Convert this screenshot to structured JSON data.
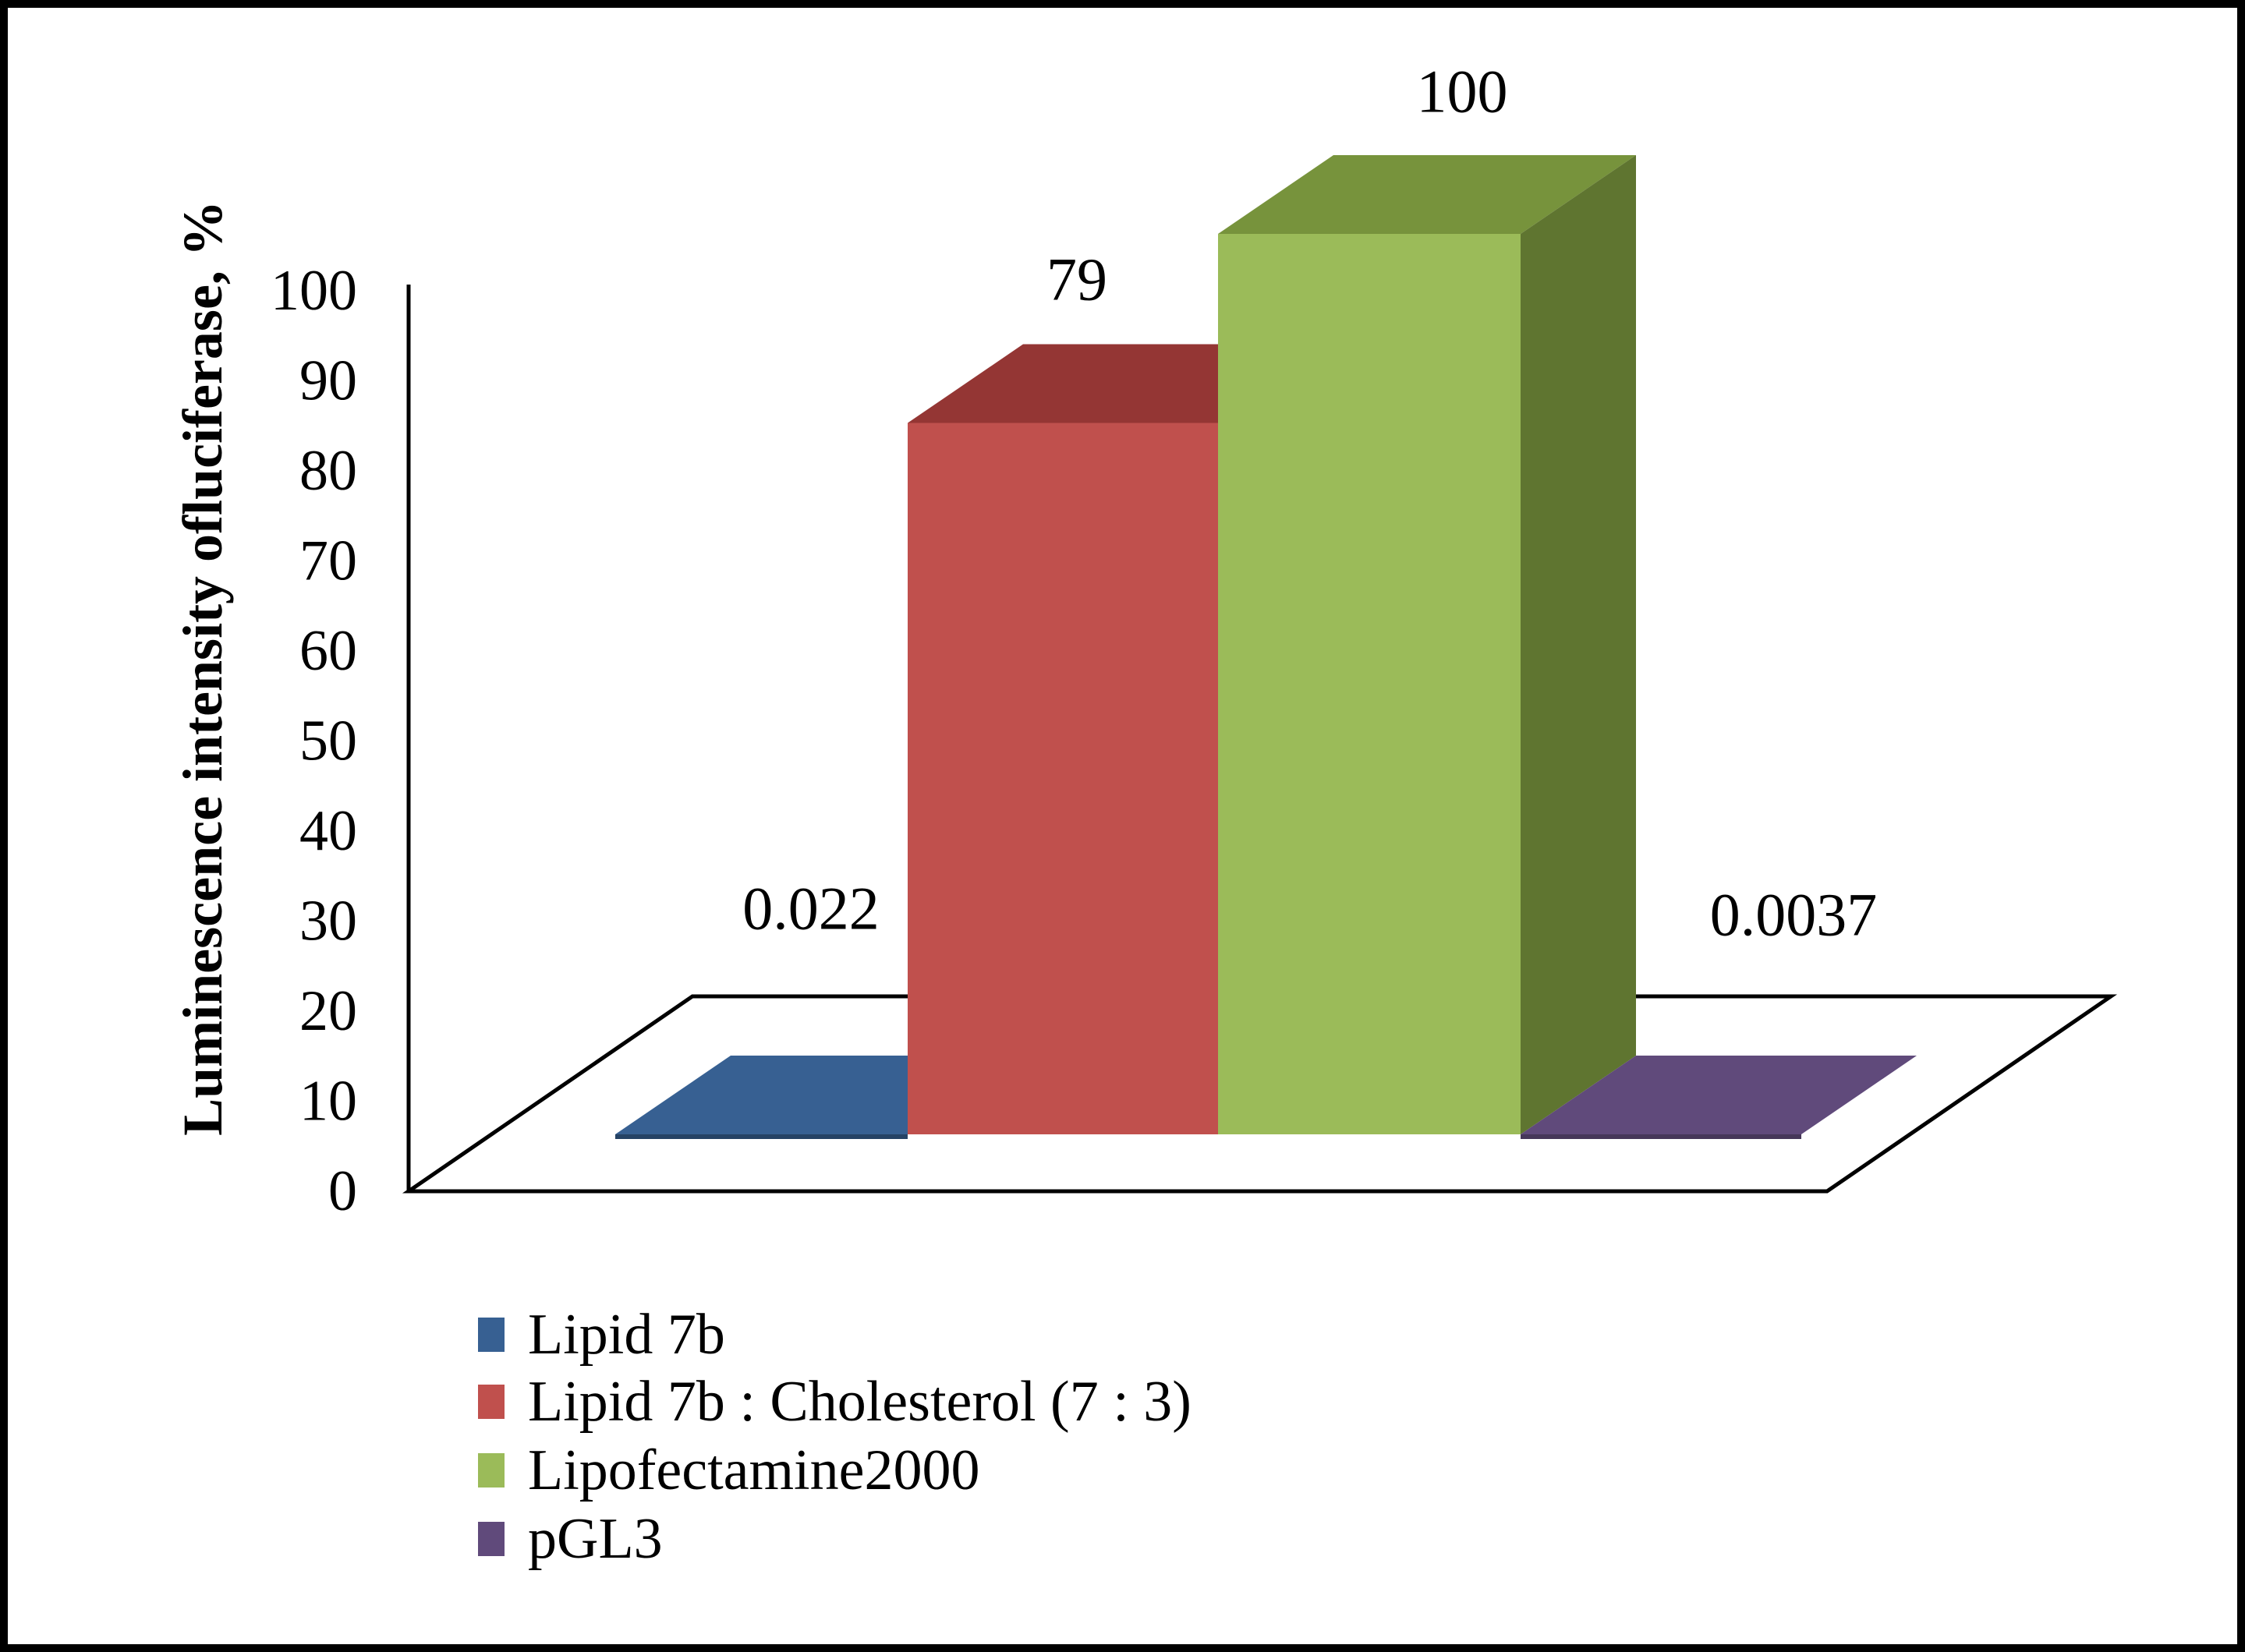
{
  "figure": {
    "background": "#FFFFFF",
    "border_color": "#000000",
    "axis_color": "#000000"
  },
  "chart_data": {
    "type": "bar",
    "projection": "3d",
    "title": "",
    "xlabel": "",
    "ylabel": "Luminescence intensity ofluciferase, %",
    "ylim": [
      0,
      100
    ],
    "ytick_step": 10,
    "yticks": [
      "0",
      "10",
      "20",
      "30",
      "40",
      "50",
      "60",
      "70",
      "80",
      "90",
      "100"
    ],
    "grid": "off",
    "legend_position": "bottom-left",
    "categories": [
      "Lipid 7b",
      "Lipid 7b : Cholesterol (7 : 3)",
      "Lipofectamine2000",
      "pGL3"
    ],
    "values": [
      0.022,
      79,
      100,
      0.0037
    ],
    "data_labels": [
      "0.022",
      "79",
      "100",
      "0.0037"
    ],
    "colors": [
      {
        "front": "#376092",
        "top": "#376092",
        "side": "#2A4A70",
        "sliver": "#254264"
      },
      {
        "front": "#C0504D",
        "top": "#943634",
        "side": "#822F2D",
        "sliver": "#822F2D"
      },
      {
        "front": "#9BBB59",
        "top": "#77933C",
        "side": "#5F7530",
        "sliver": "#5F7530"
      },
      {
        "front": "#604A7B",
        "top": "#604A7B",
        "side": "#4A3960",
        "sliver": "#463759"
      }
    ]
  },
  "legend": {
    "items": [
      {
        "label": "Lipid 7b",
        "color": "#376092"
      },
      {
        "label": "Lipid 7b : Cholesterol (7 : 3)",
        "color": "#C0504D"
      },
      {
        "label": "Lipofectamine2000",
        "color": "#9BBB59"
      },
      {
        "label": "pGL3",
        "color": "#604A7B"
      }
    ]
  }
}
